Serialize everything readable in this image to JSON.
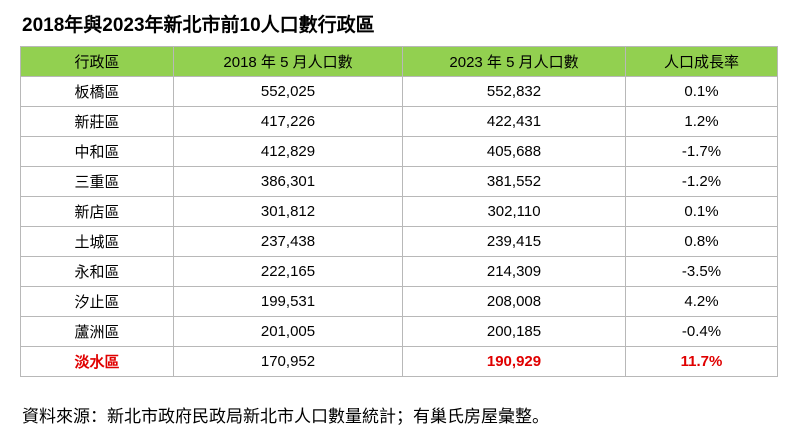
{
  "header": {
    "title": "2018年與2023年新北市前10人口數行政區"
  },
  "table": {
    "columns": [
      "行政區",
      "2018 年 5 月人口數",
      "2023 年 5 月人口數",
      "人口成長率"
    ],
    "rows": [
      [
        "板橋區",
        "552,025",
        "552,832",
        "0.1%"
      ],
      [
        "新莊區",
        "417,226",
        "422,431",
        "1.2%"
      ],
      [
        "中和區",
        "412,829",
        "405,688",
        "-1.7%"
      ],
      [
        "三重區",
        "386,301",
        "381,552",
        "-1.2%"
      ],
      [
        "新店區",
        "301,812",
        "302,110",
        "0.1%"
      ],
      [
        "土城區",
        "237,438",
        "239,415",
        "0.8%"
      ],
      [
        "永和區",
        "222,165",
        "214,309",
        "-3.5%"
      ],
      [
        "汐止區",
        "199,531",
        "208,008",
        "4.2%"
      ],
      [
        "蘆洲區",
        "201,005",
        "200,185",
        "-0.4%"
      ],
      [
        "淡水區",
        "170,952",
        "190,929",
        "11.7%"
      ]
    ]
  },
  "footer": {
    "note": "資料來源：新北市政府民政局新北市人口數量統計；有巢氏房屋彙整。"
  }
}
